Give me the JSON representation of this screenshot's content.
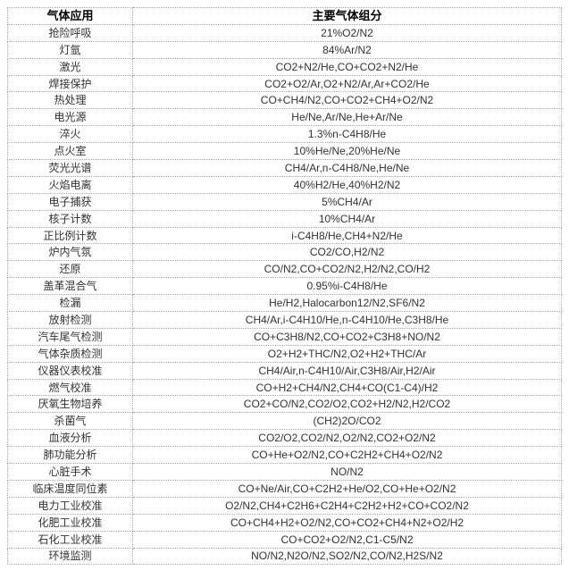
{
  "table": {
    "columns": [
      {
        "key": "application",
        "label": "气体应用"
      },
      {
        "key": "components",
        "label": "主要气体组分"
      }
    ],
    "rows": [
      {
        "application": "抢险呼吸",
        "components": "21%O2/N2"
      },
      {
        "application": "灯氩",
        "components": "84%Ar/N2"
      },
      {
        "application": "激光",
        "components": "CO2+N2/He,CO+CO2+N2/He"
      },
      {
        "application": "焊接保护",
        "components": "CO2+O2/Ar,O2+N2/Ar,Ar+CO2/He"
      },
      {
        "application": "热处理",
        "components": "CO+CH4/N2,CO+CO2+CH4+O2/N2"
      },
      {
        "application": "电光源",
        "components": "He/Ne,Ar/Ne,He+Ar/Ne"
      },
      {
        "application": "淬火",
        "components": "1.3%n-C4H8/He"
      },
      {
        "application": "点火室",
        "components": "10%He/Ne,20%He/Ne"
      },
      {
        "application": "荧光光谱",
        "components": "CH4/Ar,n-C4H8/Ne,He/Ne"
      },
      {
        "application": "火焰电离",
        "components": "40%H2/He,40%H2/N2"
      },
      {
        "application": "电子捕获",
        "components": "5%CH4/Ar"
      },
      {
        "application": "核子计数",
        "components": "10%CH4/Ar"
      },
      {
        "application": "正比例计数",
        "components": "i-C4H8/He,CH4+N2/He"
      },
      {
        "application": "炉内气氛",
        "components": "CO2/CO,H2/N2"
      },
      {
        "application": "还原",
        "components": "CO/N2,CO+CO2/N2,H2/N2,CO/H2"
      },
      {
        "application": "盖革混合气",
        "components": "0.95%i-C4H8/He"
      },
      {
        "application": "检漏",
        "components": "He/H2,Halocarbon12/N2,SF6/N2"
      },
      {
        "application": "放射检测",
        "components": "CH4/Ar,i-C4H10/He,n-C4H10/He,C3H8/He"
      },
      {
        "application": "汽车尾气检测",
        "components": "CO+C3H8/N2,CO+CO2+C3H8+NO/N2"
      },
      {
        "application": "气体杂质检测",
        "components": "O2+H2+THC/N2,O2+H2+THC/Ar"
      },
      {
        "application": "仪器仪表校准",
        "components": "CH4/Air,n-C4H10/Air,C3H8/Air,H2/Air"
      },
      {
        "application": "燃气校准",
        "components": "CO+H2+CH4/N2,CH4+CO(C1-C4)/H2"
      },
      {
        "application": "厌氧生物培养",
        "components": "CO2+CO/N2,CO2/O2,CO2+H2/N2,H2/CO2"
      },
      {
        "application": "杀菌气",
        "components": "(CH2)2O/CO2"
      },
      {
        "application": "血液分析",
        "components": "CO2/O2,CO2/N2,O2/N2,CO2+O2/N2"
      },
      {
        "application": "肺功能分析",
        "components": "CO+He+O2/N2,CO+C2H2+CH4+O2/N2"
      },
      {
        "application": "心脏手术",
        "components": "NO/N2"
      },
      {
        "application": "临床温度同位素",
        "components": "CO+Ne/Air,CO+C2H2+He/O2,CO+He+O2/N2"
      },
      {
        "application": "电力工业校准",
        "components": "O2/N2,CH4+C2H6+C2H4+C2H2+H2+CO+CO2/N2"
      },
      {
        "application": "化肥工业校准",
        "components": "CO+CH4+H2+O2/N2,CO+CO2+CH4+N2+O2/H2"
      },
      {
        "application": "石化工业校准",
        "components": "CO+CO2+O2/N2,C1-C5/N2"
      },
      {
        "application": "环境监测",
        "components": "NO/N2,N2O/N2,SO2/N2,CO/N2,H2S/N2"
      }
    ]
  },
  "colors": {
    "background": "#ffffff",
    "border": "#a9a9a9",
    "header_text": "#000000",
    "body_text": "#333333"
  }
}
